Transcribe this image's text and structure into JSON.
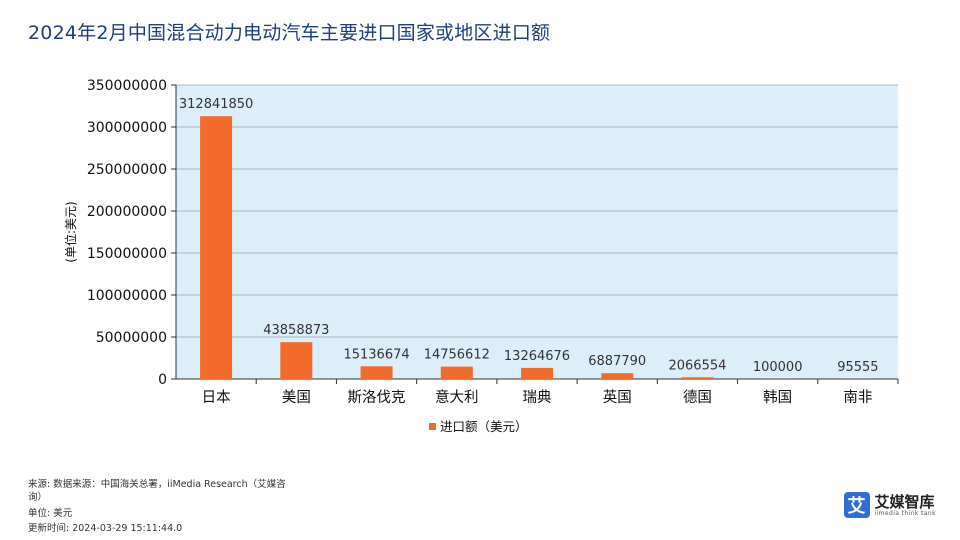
{
  "header": {
    "title": "2024年2月中国混合动力电动汽车主要进口国家或地区进口额"
  },
  "chart_data": {
    "type": "bar",
    "title": "2024年2月中国混合动力电动汽车主要进口国家或地区进口额",
    "categories": [
      "日本",
      "美国",
      "斯洛伐克",
      "意大利",
      "瑞典",
      "英国",
      "德国",
      "韩国",
      "南非"
    ],
    "series": [
      {
        "name": "进口额（美元）",
        "values": [
          312841850,
          43858873,
          15136674,
          14756612,
          13264676,
          6887790,
          2066554,
          100000,
          95555
        ],
        "color": "#f26b2a"
      }
    ],
    "data_labels": [
      "312841850",
      "43858873",
      "15136674",
      "14756612",
      "13264676",
      "6887790",
      "2066554",
      "100000",
      "95555"
    ],
    "ylabel": "(单位:美元)",
    "xlabel": "",
    "ylim": [
      0,
      350000000
    ],
    "yticks": [
      0,
      50000000,
      100000000,
      150000000,
      200000000,
      250000000,
      300000000,
      350000000
    ],
    "ytick_labels": [
      "0",
      "50000000",
      "100000000",
      "150000000",
      "200000000",
      "250000000",
      "300000000",
      "350000000"
    ],
    "grid": true,
    "legend": "bottom-center",
    "plot_bg": "#ddeefb",
    "grid_color": "#a9b8c8"
  },
  "footer": {
    "source_line1": "来源: 数据来源：中国海关总署，iiMedia Research（艾媒咨",
    "source_line2": "询）",
    "unit": "单位: 美元",
    "updated": "更新时间: 2024-03-29 15:11:44.0"
  },
  "logo": {
    "mark": "艾",
    "name": "艾媒智库",
    "tagline": "iimedia think tank"
  }
}
